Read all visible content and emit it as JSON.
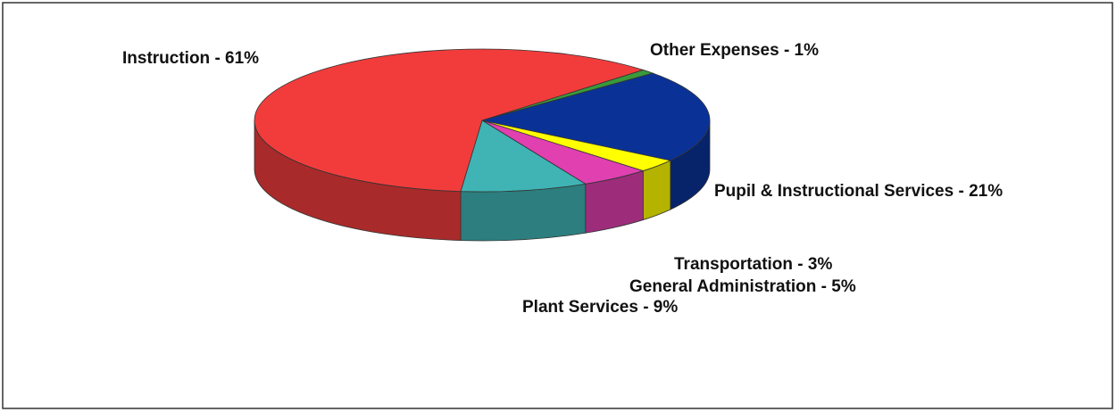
{
  "chart_data": {
    "type": "pie3d",
    "labels": [
      "Other Expenses - 1%",
      "Pupil & Instructional Services - 21%",
      "Transportation - 3%",
      "General Administration - 5%",
      "Plant Services - 9%",
      "Instruction - 61%"
    ],
    "values": [
      1,
      21,
      3,
      5,
      9,
      61
    ],
    "colors": [
      "#3a9a3a",
      "#0a3296",
      "#ffff00",
      "#e040b0",
      "#40b4b4",
      "#f23c3c"
    ]
  }
}
